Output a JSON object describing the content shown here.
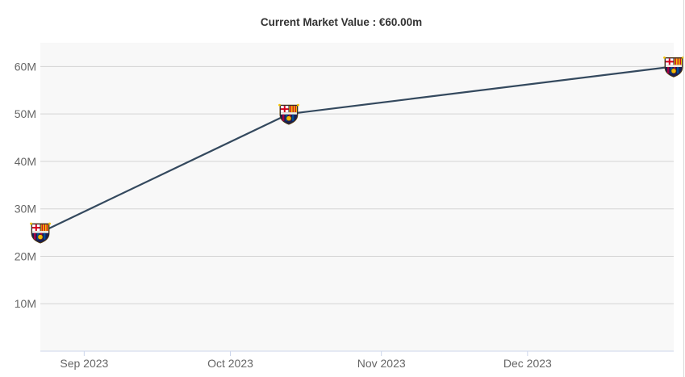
{
  "header": {
    "title": "Current Market Value : €60.00m"
  },
  "chart_data": {
    "type": "line",
    "title": "Current Market Value : €60.00m",
    "xlabel": "",
    "ylabel": "",
    "x_ticks": [
      "Sep 2023",
      "Oct 2023",
      "Nov 2023",
      "Dec 2023"
    ],
    "y_ticks": [
      "10M",
      "20M",
      "30M",
      "40M",
      "50M",
      "60M"
    ],
    "ylim": [
      0,
      65000000
    ],
    "xlim": [
      "2023-08-23",
      "2023-12-31"
    ],
    "grid": true,
    "line_color": "#34495e",
    "plot_background": "#f8f8f8",
    "marker_icon": "club-crest-icon",
    "series": [
      {
        "values": [
          {
            "x": "2023-08-23",
            "y": 25000000
          },
          {
            "x": "2023-10-13",
            "y": 50000000
          },
          {
            "x": "2023-12-31",
            "y": 60000000
          }
        ]
      }
    ]
  }
}
